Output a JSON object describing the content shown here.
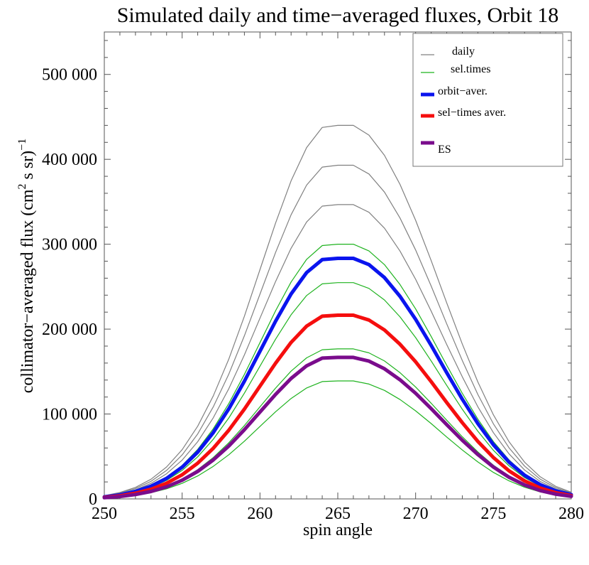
{
  "chart_data": {
    "type": "line",
    "title": "Simulated daily and time−averaged fluxes, Orbit 18",
    "xlabel": "spin angle",
    "ylabel_main": "collimator−averaged flux (cm",
    "ylabel_sup2": "2",
    "ylabel_mid": " s sr)",
    "ylabel_supm1": "−1",
    "xlim": [
      250,
      280
    ],
    "ylim": [
      0,
      550000
    ],
    "x_ticks": [
      250,
      255,
      260,
      265,
      270,
      275,
      280
    ],
    "x_tick_labels": [
      "250",
      "255",
      "260",
      "265",
      "270",
      "275",
      "280"
    ],
    "y_ticks": [
      0,
      100000,
      200000,
      300000,
      400000,
      500000
    ],
    "y_tick_labels": [
      "0",
      "100 000",
      "200 000",
      "300 000",
      "400 000",
      "500 000"
    ],
    "grid": false,
    "legend_position": "top-right",
    "x": [
      250,
      251,
      252,
      253,
      254,
      255,
      256,
      257,
      258,
      259,
      260,
      261,
      262,
      263,
      264,
      265,
      266,
      267,
      268,
      269,
      270,
      271,
      272,
      273,
      274,
      275,
      276,
      277,
      278,
      279,
      280
    ],
    "series": [
      {
        "name": "daily",
        "group": "daily",
        "color": "#808080",
        "width": 1.2,
        "values": [
          3800,
          7500,
          13600,
          23200,
          37600,
          58000,
          85600,
          121200,
          164800,
          215200,
          270000,
          324900,
          374700,
          413900,
          437600,
          440000,
          440000,
          428500,
          404700,
          370400,
          328200,
          280700,
          230900,
          182300,
          137700,
          99000,
          67400,
          43300,
          26100,
          14800,
          7900
        ]
      },
      {
        "group": "daily",
        "color": "#808080",
        "width": 1.2,
        "values": [
          3400,
          6700,
          12200,
          20700,
          33600,
          51800,
          76500,
          108300,
          147200,
          192200,
          241100,
          290200,
          334700,
          369700,
          390900,
          393000,
          393000,
          382700,
          361400,
          330800,
          293200,
          250700,
          206200,
          162900,
          123000,
          88400,
          60200,
          38700,
          23300,
          13200,
          7000
        ]
      },
      {
        "group": "daily",
        "color": "#808080",
        "width": 1.2,
        "values": [
          3000,
          5900,
          10700,
          18300,
          29600,
          45700,
          67400,
          95500,
          129900,
          169600,
          212800,
          256000,
          295300,
          326200,
          344900,
          346700,
          346700,
          337600,
          318900,
          291900,
          258700,
          221200,
          181900,
          143700,
          108500,
          78000,
          53100,
          34100,
          20600,
          11700,
          6200
        ]
      },
      {
        "name": "sel.times",
        "group": "sel",
        "color": "#1fb31f",
        "width": 1.2,
        "values": [
          2600,
          5100,
          9300,
          15800,
          25600,
          39500,
          58300,
          82600,
          112400,
          146700,
          184000,
          221500,
          255500,
          282200,
          298400,
          300000,
          300000,
          292100,
          275900,
          252500,
          223800,
          191400,
          157400,
          124300,
          93900,
          67500,
          45900,
          29500,
          17800,
          10100,
          5400
        ]
      },
      {
        "group": "sel",
        "color": "#1fb31f",
        "width": 1.2,
        "values": [
          2200,
          4300,
          7900,
          13400,
          21800,
          33600,
          49600,
          70200,
          95400,
          124600,
          156300,
          188100,
          216900,
          239600,
          253300,
          254700,
          254700,
          248000,
          234300,
          214400,
          190000,
          162500,
          133700,
          105600,
          79700,
          57300,
          39000,
          25100,
          15100,
          8600,
          4600
        ]
      },
      {
        "group": "sel",
        "color": "#1fb31f",
        "width": 1.2,
        "values": [
          1900,
          3700,
          6700,
          11300,
          18400,
          28300,
          41800,
          59200,
          80500,
          105100,
          131800,
          158700,
          183000,
          202100,
          213700,
          214900,
          214900,
          209200,
          197600,
          180900,
          160300,
          137100,
          112800,
          89000,
          67200,
          48300,
          32900,
          21100,
          12700,
          7200,
          3900
        ]
      },
      {
        "group": "sel",
        "color": "#1fb31f",
        "width": 1.2,
        "values": [
          1500,
          3000,
          5500,
          9300,
          15100,
          23300,
          34400,
          48700,
          66200,
          86400,
          108400,
          130500,
          150500,
          166200,
          175700,
          176700,
          176700,
          172000,
          162500,
          148700,
          131800,
          112700,
          92700,
          73200,
          55300,
          39700,
          27100,
          17400,
          10500,
          5900,
          3200
        ]
      },
      {
        "group": "sel",
        "color": "#1fb31f",
        "width": 1.2,
        "values": [
          1200,
          2400,
          4300,
          7300,
          11900,
          18300,
          27000,
          38300,
          52100,
          68000,
          85300,
          102600,
          118300,
          130700,
          138200,
          139000,
          139000,
          135300,
          127800,
          117000,
          103700,
          88700,
          72900,
          57600,
          43500,
          31200,
          21300,
          13700,
          8200,
          4700,
          2500
        ]
      },
      {
        "name": "orbit−aver.",
        "group": "orbit",
        "color": "#0a14ee",
        "width": 5,
        "values": [
          2400,
          4800,
          8800,
          15000,
          24200,
          37300,
          55100,
          78000,
          106200,
          138600,
          173900,
          209300,
          241400,
          266600,
          281900,
          283400,
          283400,
          276000,
          260700,
          238600,
          211500,
          180800,
          148700,
          117400,
          88700,
          63800,
          43400,
          27900,
          16800,
          9500,
          5100
        ]
      },
      {
        "name": "sel−times aver.",
        "group": "seltimes",
        "color": "#f50e0e",
        "width": 5,
        "values": [
          1900,
          3600,
          6700,
          11400,
          18500,
          28500,
          42100,
          59600,
          81000,
          105800,
          132800,
          159800,
          184300,
          203500,
          215200,
          216400,
          216400,
          210700,
          199000,
          182200,
          161500,
          138100,
          113500,
          89700,
          67700,
          48700,
          33100,
          21300,
          12800,
          7300,
          3900
        ]
      },
      {
        "name": "ES",
        "group": "es",
        "color": "#7a0c8c",
        "width": 5,
        "values": [
          1400,
          2800,
          5200,
          8800,
          14200,
          22000,
          32400,
          45900,
          62400,
          81500,
          102300,
          123100,
          141900,
          156800,
          165800,
          166700,
          166700,
          162300,
          153300,
          140300,
          124400,
          106300,
          87500,
          69100,
          52200,
          37500,
          25500,
          16400,
          9900,
          5600,
          3000
        ]
      }
    ]
  },
  "legend_swatch_widths": [
    1.2,
    1.2,
    5,
    5,
    5
  ]
}
